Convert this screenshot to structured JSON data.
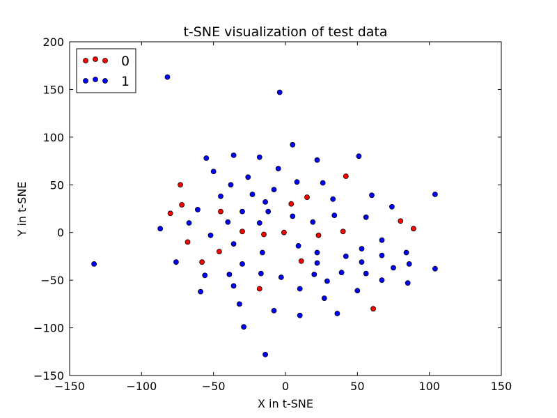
{
  "chart_data": {
    "type": "scatter",
    "title": "t-SNE visualization of test data",
    "xlabel": "X in t-SNE",
    "ylabel": "Y in t-SNE",
    "xlim": [
      -150,
      150
    ],
    "ylim": [
      -150,
      200
    ],
    "xticks": [
      -150,
      -100,
      -50,
      0,
      50,
      100,
      150
    ],
    "yticks": [
      -150,
      -100,
      -50,
      0,
      50,
      100,
      150,
      200
    ],
    "legend_position": "top-left",
    "grid": false,
    "series": [
      {
        "name": "0",
        "color": "#ff0000",
        "points": [
          [
            -73,
            50
          ],
          [
            -72,
            29
          ],
          [
            -80,
            20
          ],
          [
            -68,
            -10
          ],
          [
            -58,
            -31
          ],
          [
            -45,
            22
          ],
          [
            -46,
            -20
          ],
          [
            -30,
            1
          ],
          [
            -15,
            -2
          ],
          [
            -18,
            -59
          ],
          [
            -1,
            0
          ],
          [
            4,
            30
          ],
          [
            15,
            37
          ],
          [
            11,
            -30
          ],
          [
            23,
            -3
          ],
          [
            42,
            59
          ],
          [
            40,
            1
          ],
          [
            61,
            -80
          ],
          [
            80,
            12
          ],
          [
            89,
            4
          ]
        ]
      },
      {
        "name": "1",
        "color": "#0000ff",
        "points": [
          [
            -82,
            163
          ],
          [
            -4,
            147
          ],
          [
            -133,
            -33
          ],
          [
            -87,
            4
          ],
          [
            -55,
            78
          ],
          [
            -50,
            64
          ],
          [
            -36,
            81
          ],
          [
            -18,
            79
          ],
          [
            -5,
            67
          ],
          [
            5,
            92
          ],
          [
            22,
            76
          ],
          [
            51,
            80
          ],
          [
            -61,
            24
          ],
          [
            -67,
            10
          ],
          [
            -52,
            -3
          ],
          [
            -76,
            -31
          ],
          [
            -56,
            -45
          ],
          [
            -59,
            -62
          ],
          [
            -45,
            38
          ],
          [
            -38,
            50
          ],
          [
            -26,
            58
          ],
          [
            -23,
            40
          ],
          [
            -40,
            11
          ],
          [
            -30,
            22
          ],
          [
            -14,
            32
          ],
          [
            -12,
            22
          ],
          [
            -18,
            10
          ],
          [
            -8,
            45
          ],
          [
            -16,
            -21
          ],
          [
            -36,
            -12
          ],
          [
            -39,
            -44
          ],
          [
            -36,
            -56
          ],
          [
            -30,
            -33
          ],
          [
            -32,
            -75
          ],
          [
            -29,
            -99
          ],
          [
            -14,
            -128
          ],
          [
            -8,
            -82
          ],
          [
            -17,
            -43
          ],
          [
            -3,
            -47
          ],
          [
            8,
            53
          ],
          [
            5,
            17
          ],
          [
            9,
            -14
          ],
          [
            19,
            11
          ],
          [
            26,
            52
          ],
          [
            33,
            35
          ],
          [
            34,
            18
          ],
          [
            22,
            -21
          ],
          [
            22,
            -32
          ],
          [
            20,
            -44
          ],
          [
            29,
            -51
          ],
          [
            10,
            -59
          ],
          [
            27,
            -69
          ],
          [
            10,
            -87
          ],
          [
            36,
            -85
          ],
          [
            42,
            -25
          ],
          [
            39,
            -42
          ],
          [
            50,
            -61
          ],
          [
            53,
            -31
          ],
          [
            53,
            -17
          ],
          [
            56,
            -43
          ],
          [
            56,
            16
          ],
          [
            60,
            39
          ],
          [
            67,
            -8
          ],
          [
            67,
            -24
          ],
          [
            67,
            -50
          ],
          [
            74,
            27
          ],
          [
            75,
            -37
          ],
          [
            84,
            -21
          ],
          [
            85,
            -53
          ],
          [
            86,
            -33
          ],
          [
            104,
            40
          ],
          [
            104,
            -38
          ]
        ]
      }
    ]
  }
}
